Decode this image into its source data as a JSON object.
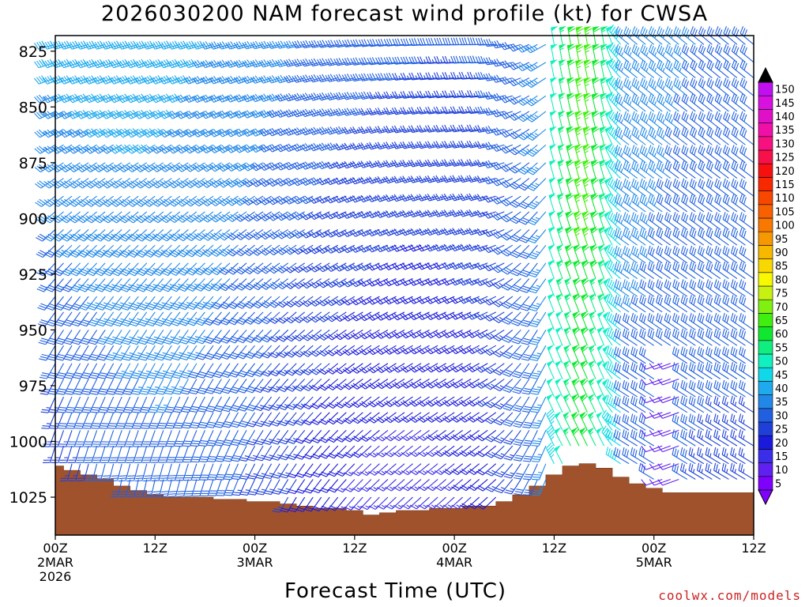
{
  "chart_data": {
    "type": "wind-barb time-height profile",
    "title": "2026030200 NAM forecast wind profile (kt) for CWSA",
    "xlabel": "Forecast Time (UTC)",
    "ylabel": "",
    "credit": "coolwx.com/models",
    "x_range_hours": [
      0,
      84
    ],
    "y_range_hpa": [
      1042,
      818
    ],
    "y_ticks": [
      {
        "value": 825,
        "label": "825"
      },
      {
        "value": 850,
        "label": "850"
      },
      {
        "value": 875,
        "label": "875"
      },
      {
        "value": 900,
        "label": "900"
      },
      {
        "value": 925,
        "label": "925"
      },
      {
        "value": 950,
        "label": "950"
      },
      {
        "value": 975,
        "label": "975"
      },
      {
        "value": 1000,
        "label": "1000"
      },
      {
        "value": 1025,
        "label": "1025"
      }
    ],
    "x_ticks": [
      {
        "hour": 0,
        "lines": [
          "00Z",
          "2MAR",
          "2026"
        ]
      },
      {
        "hour": 12,
        "lines": [
          "12Z"
        ]
      },
      {
        "hour": 24,
        "lines": [
          "00Z",
          "3MAR"
        ]
      },
      {
        "hour": 36,
        "lines": [
          "12Z"
        ]
      },
      {
        "hour": 48,
        "lines": [
          "00Z",
          "4MAR"
        ]
      },
      {
        "hour": 60,
        "lines": [
          "12Z"
        ]
      },
      {
        "hour": 72,
        "lines": [
          "00Z",
          "5MAR"
        ]
      },
      {
        "hour": 84,
        "lines": [
          "12Z"
        ]
      }
    ],
    "colorbar": {
      "labels": [
        "5",
        "10",
        "15",
        "20",
        "25",
        "30",
        "35",
        "40",
        "45",
        "50",
        "55",
        "60",
        "65",
        "70",
        "75",
        "80",
        "85",
        "90",
        "95",
        "100",
        "105",
        "110",
        "115",
        "120",
        "125",
        "130",
        "135",
        "140",
        "145",
        "150"
      ],
      "colors": [
        "#8000ff",
        "#6020f0",
        "#3a2ee8",
        "#1a1adc",
        "#1e40d8",
        "#2060e0",
        "#2288e8",
        "#20aaee",
        "#10d8e8",
        "#10f0c0",
        "#10ee80",
        "#10e830",
        "#40ee10",
        "#80f010",
        "#c8f010",
        "#f8f800",
        "#f8d800",
        "#f8b800",
        "#f89800",
        "#f87800",
        "#f86000",
        "#f84800",
        "#f82800",
        "#f81010",
        "#f8104a",
        "#f81080",
        "#f010a8",
        "#e010c8",
        "#d810e0",
        "#c010f0"
      ]
    },
    "surface_pressure": {
      "hours": [
        0,
        2,
        4,
        6,
        8,
        10,
        12,
        14,
        16,
        18,
        20,
        22,
        24,
        26,
        28,
        30,
        32,
        34,
        36,
        38,
        40,
        42,
        44,
        46,
        48,
        50,
        52,
        54,
        56,
        58,
        60,
        62,
        64,
        66,
        68,
        70,
        72,
        74,
        76,
        78,
        80,
        82,
        84
      ],
      "hpa": [
        1011,
        1013,
        1015,
        1017,
        1020,
        1022,
        1024,
        1025,
        1025,
        1025,
        1026,
        1026,
        1027,
        1027,
        1028,
        1029,
        1030,
        1030,
        1031,
        1033,
        1032,
        1031,
        1031,
        1030,
        1030,
        1029,
        1029,
        1027,
        1024,
        1020,
        1015,
        1011,
        1010,
        1012,
        1016,
        1019,
        1021,
        1023,
        1023,
        1023,
        1023,
        1023,
        1023
      ]
    },
    "wind_field": {
      "time_step_hours": 1,
      "pressure_levels_hpa": [
        822,
        830,
        837,
        845,
        852,
        860,
        867,
        875,
        882,
        890,
        897,
        905,
        912,
        920,
        927,
        935,
        942,
        950,
        957,
        965,
        972,
        980,
        987,
        995,
        1002,
        1010,
        1017,
        1025
      ],
      "description": "Barb direction and speed are approximated from the figure",
      "speed_range_kt": [
        5,
        70
      ]
    }
  }
}
